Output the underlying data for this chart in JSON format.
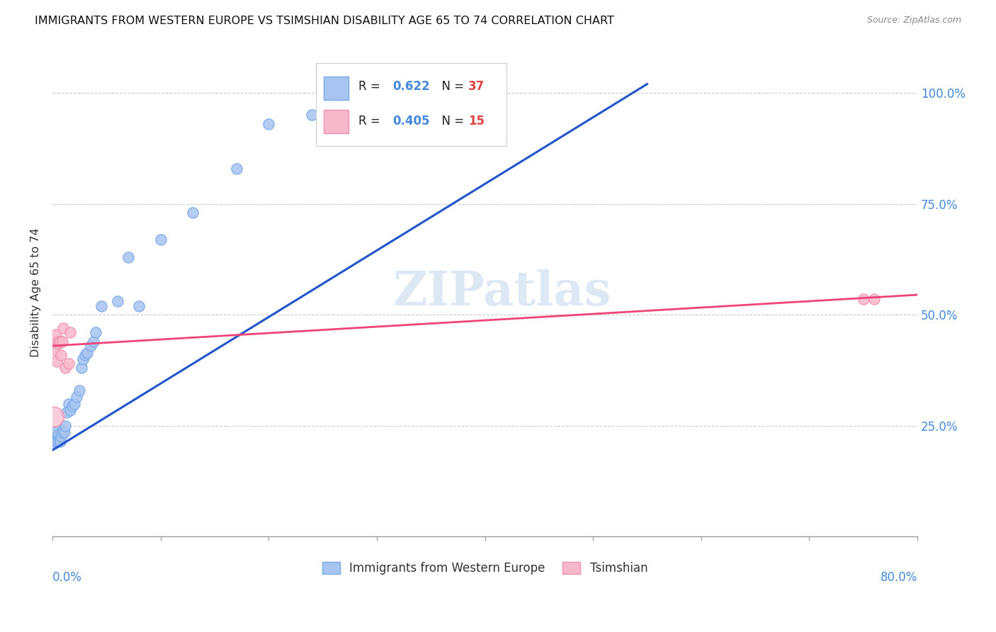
{
  "title": "IMMIGRANTS FROM WESTERN EUROPE VS TSIMSHIAN DISABILITY AGE 65 TO 74 CORRELATION CHART",
  "source": "Source: ZipAtlas.com",
  "ylabel": "Disability Age 65 to 74",
  "R_blue": 0.622,
  "N_blue": 37,
  "R_pink": 0.405,
  "N_pink": 15,
  "legend_label_blue": "Immigrants from Western Europe",
  "legend_label_pink": "Tsimshian",
  "blue_color": "#a8c4f0",
  "blue_edge_color": "#7aaae8",
  "pink_color": "#f8b8cc",
  "pink_edge_color": "#f090b0",
  "trend_blue_color": "#2255cc",
  "trend_pink_color": "#ee4477",
  "watermark": "ZIPatlas",
  "xmin": 0.0,
  "xmax": 0.8,
  "ymin": 0.0,
  "ymax": 1.1,
  "blue_x": [
    0.001,
    0.002,
    0.003,
    0.003,
    0.004,
    0.005,
    0.005,
    0.006,
    0.007,
    0.008,
    0.009,
    0.01,
    0.011,
    0.012,
    0.013,
    0.015,
    0.016,
    0.018,
    0.02,
    0.022,
    0.025,
    0.027,
    0.028,
    0.03,
    0.032,
    0.035,
    0.038,
    0.04,
    0.045,
    0.06,
    0.07,
    0.08,
    0.1,
    0.13,
    0.17,
    0.2,
    0.24
  ],
  "blue_y": [
    0.21,
    0.22,
    0.215,
    0.235,
    0.215,
    0.225,
    0.23,
    0.215,
    0.215,
    0.225,
    0.235,
    0.24,
    0.235,
    0.25,
    0.28,
    0.3,
    0.285,
    0.295,
    0.3,
    0.315,
    0.33,
    0.38,
    0.4,
    0.41,
    0.415,
    0.43,
    0.44,
    0.46,
    0.52,
    0.53,
    0.63,
    0.52,
    0.67,
    0.73,
    0.83,
    0.93,
    0.95
  ],
  "pink_x": [
    0.001,
    0.002,
    0.003,
    0.004,
    0.005,
    0.006,
    0.007,
    0.008,
    0.009,
    0.01,
    0.012,
    0.015,
    0.016,
    0.75,
    0.76
  ],
  "pink_y": [
    0.44,
    0.42,
    0.455,
    0.395,
    0.435,
    0.44,
    0.44,
    0.41,
    0.44,
    0.47,
    0.38,
    0.39,
    0.46,
    0.535,
    0.535
  ],
  "trend_blue_x0": 0.0,
  "trend_blue_y0": 0.195,
  "trend_blue_x1": 0.55,
  "trend_blue_y1": 1.02,
  "trend_pink_x0": 0.0,
  "trend_pink_y0": 0.43,
  "trend_pink_x1": 0.8,
  "trend_pink_y1": 0.545
}
